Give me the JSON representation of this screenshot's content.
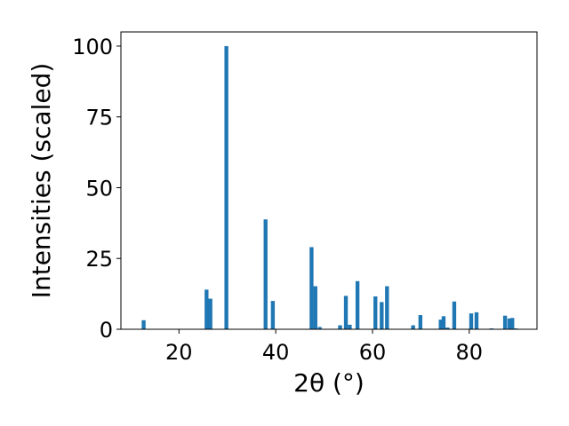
{
  "chart_data": {
    "type": "bar",
    "xlabel": "2θ (°)",
    "ylabel": "Intensities (scaled)",
    "xlim": [
      8,
      94
    ],
    "ylim": [
      0,
      105
    ],
    "xticks": [
      20,
      40,
      60,
      80
    ],
    "yticks": [
      0,
      25,
      50,
      75,
      100
    ],
    "grid": false,
    "bar_color": "#1f77b4",
    "bar_width": 0.8,
    "points": [
      {
        "x": 12.7,
        "y": 3.2
      },
      {
        "x": 25.7,
        "y": 14.0
      },
      {
        "x": 26.5,
        "y": 10.8
      },
      {
        "x": 29.8,
        "y": 100.0
      },
      {
        "x": 37.9,
        "y": 38.8
      },
      {
        "x": 39.4,
        "y": 10.0
      },
      {
        "x": 47.4,
        "y": 29.0
      },
      {
        "x": 48.2,
        "y": 15.2
      },
      {
        "x": 49.1,
        "y": 0.8
      },
      {
        "x": 53.3,
        "y": 1.4
      },
      {
        "x": 54.5,
        "y": 11.8
      },
      {
        "x": 55.3,
        "y": 1.6
      },
      {
        "x": 56.9,
        "y": 17.0
      },
      {
        "x": 60.6,
        "y": 11.6
      },
      {
        "x": 61.9,
        "y": 9.6
      },
      {
        "x": 63.0,
        "y": 15.2
      },
      {
        "x": 68.4,
        "y": 1.4
      },
      {
        "x": 69.9,
        "y": 5.0
      },
      {
        "x": 74.1,
        "y": 3.4
      },
      {
        "x": 74.7,
        "y": 4.6
      },
      {
        "x": 75.5,
        "y": 0.6
      },
      {
        "x": 76.9,
        "y": 9.8
      },
      {
        "x": 80.4,
        "y": 5.6
      },
      {
        "x": 81.5,
        "y": 6.0
      },
      {
        "x": 84.6,
        "y": 0.3
      },
      {
        "x": 87.4,
        "y": 4.8
      },
      {
        "x": 88.3,
        "y": 3.8
      },
      {
        "x": 88.9,
        "y": 4.0
      },
      {
        "x": 89.6,
        "y": 0.3
      }
    ]
  }
}
